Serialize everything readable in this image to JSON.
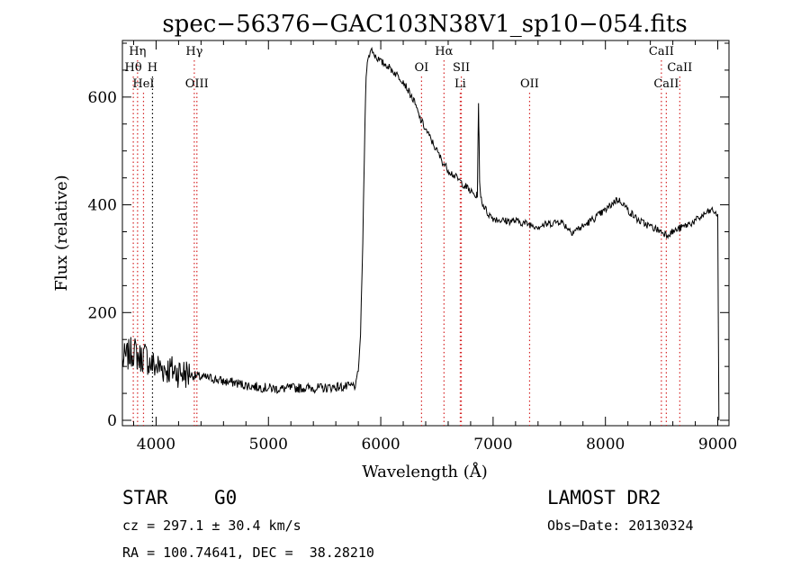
{
  "chart_data": {
    "type": "line",
    "title": "spec−56376−GAC103N38V1_sp10−054.fits",
    "xlabel": "Wavelength (Å)",
    "ylabel": "Flux (relative)",
    "xlim": [
      3700,
      9100
    ],
    "ylim": [
      -10,
      705
    ],
    "xticks": [
      4000,
      5000,
      6000,
      7000,
      8000,
      9000
    ],
    "yticks": [
      0,
      200,
      400,
      600
    ],
    "grid": false,
    "series": [
      {
        "x": [
          3700,
          3750,
          3800,
          3850,
          3900,
          3950,
          4000,
          4100,
          4200,
          4300,
          4400,
          4500,
          4600,
          4700,
          4800,
          4900,
          5000,
          5100,
          5200,
          5300,
          5400,
          5500,
          5600,
          5700,
          5780,
          5800,
          5820,
          5840,
          5860,
          5870,
          5880,
          5900,
          5920,
          5940,
          5960,
          5980,
          6000,
          6050,
          6100,
          6150,
          6200,
          6250,
          6300,
          6350,
          6400,
          6450,
          6500,
          6550,
          6600,
          6650,
          6700,
          6750,
          6800,
          6850,
          6860,
          6870,
          6875,
          6880,
          6890,
          6900,
          6950,
          7000,
          7100,
          7200,
          7300,
          7400,
          7500,
          7600,
          7700,
          7800,
          7900,
          8000,
          8100,
          8150,
          8200,
          8300,
          8400,
          8500,
          8550,
          8600,
          8700,
          8800,
          8900,
          8950,
          9000,
          9010
        ],
        "y": [
          110,
          120,
          130,
          115,
          120,
          105,
          100,
          95,
          90,
          85,
          80,
          78,
          72,
          70,
          65,
          62,
          60,
          58,
          60,
          60,
          60,
          60,
          62,
          62,
          65,
          90,
          160,
          330,
          560,
          640,
          665,
          680,
          690,
          680,
          675,
          670,
          665,
          660,
          650,
          640,
          630,
          610,
          590,
          560,
          540,
          520,
          500,
          480,
          465,
          455,
          445,
          435,
          425,
          415,
          420,
          585,
          520,
          440,
          420,
          405,
          385,
          375,
          370,
          370,
          365,
          360,
          365,
          370,
          350,
          360,
          375,
          390,
          410,
          405,
          390,
          370,
          360,
          350,
          345,
          350,
          360,
          370,
          385,
          390,
          380,
          0
        ]
      }
    ],
    "lines": [
      {
        "label": "Hη",
        "x": 3835,
        "color": "#d62728",
        "row": 0
      },
      {
        "label": "Hθ",
        "x": 3797,
        "color": "#d62728",
        "row": 1
      },
      {
        "label": "H",
        "x": 3968,
        "color": "#000000",
        "row": 1
      },
      {
        "label": "HeI",
        "x": 3888,
        "color": "#d62728",
        "row": 2
      },
      {
        "label": "Hγ",
        "x": 4340,
        "color": "#d62728",
        "row": 0
      },
      {
        "label": "OIII",
        "x": 4363,
        "color": "#d62728",
        "row": 2
      },
      {
        "label": "OI",
        "x": 6363,
        "color": "#d62728",
        "row": 1
      },
      {
        "label": "Hα",
        "x": 6563,
        "color": "#d62728",
        "row": 0
      },
      {
        "label": "SII",
        "x": 6717,
        "color": "#d62728",
        "row": 1
      },
      {
        "label": "Li",
        "x": 6708,
        "color": "#d62728",
        "row": 2
      },
      {
        "label": "OII",
        "x": 7325,
        "color": "#d62728",
        "row": 2
      },
      {
        "label": "CaII",
        "x": 8498,
        "color": "#d62728",
        "row": 0
      },
      {
        "label": "CaII",
        "x": 8662,
        "color": "#d62728",
        "row": 1
      },
      {
        "label": "CaII",
        "x": 8542,
        "color": "#d62728",
        "row": 2
      }
    ]
  },
  "info": {
    "object_class": "STAR",
    "subclass": "G0",
    "survey": "LAMOST DR2",
    "redshift": "cz = 297.1 ± 30.4 km/s",
    "obs_date": "Obs−Date: 20130324",
    "coords": "RA = 100.74641, DEC =  38.28210"
  }
}
